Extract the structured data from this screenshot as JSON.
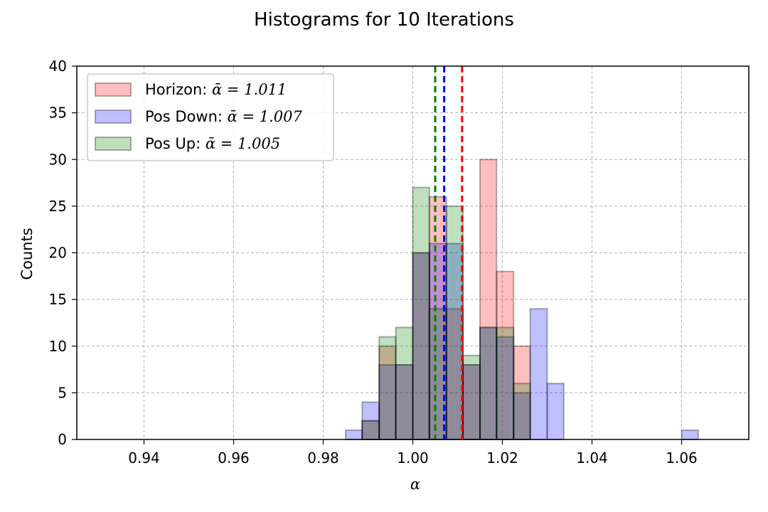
{
  "chart_data": {
    "type": "histogram",
    "title": "Histograms for 10 Iterations",
    "xlabel": "α",
    "ylabel": "Counts",
    "xlim": [
      0.925,
      1.075
    ],
    "ylim": [
      0,
      40
    ],
    "xticks": [
      0.94,
      0.96,
      0.98,
      1.0,
      1.02,
      1.04,
      1.06
    ],
    "xtick_labels": [
      "0.94",
      "0.96",
      "0.98",
      "1.00",
      "1.02",
      "1.04",
      "1.06"
    ],
    "yticks": [
      0,
      5,
      10,
      15,
      20,
      25,
      30,
      35,
      40
    ],
    "ytick_labels": [
      "0",
      "5",
      "10",
      "15",
      "20",
      "25",
      "30",
      "35",
      "40"
    ],
    "grid": true,
    "legend_position": "upper-left",
    "bin_edges": [
      0.985,
      0.9887,
      0.9925,
      0.9962,
      1.0,
      1.0037,
      1.0075,
      1.0112,
      1.015,
      1.0187,
      1.0225,
      1.0262,
      1.03,
      1.0337,
      1.0375,
      1.0412,
      1.045,
      1.0487,
      1.0525,
      1.0562,
      1.06,
      1.0637
    ],
    "series": [
      {
        "name": "Horizon",
        "legend_prefix": "Horizon: ",
        "legend_math": "ᾱ = 1.011",
        "color": "#ff0000",
        "mean": 1.011,
        "counts": [
          0,
          2,
          10,
          8,
          20,
          26,
          14,
          8,
          30,
          18,
          10,
          0,
          0,
          0,
          0,
          0,
          0,
          0,
          0,
          0,
          0
        ]
      },
      {
        "name": "Pos Down",
        "legend_prefix": "Pos Down: ",
        "legend_math": "ᾱ = 1.007",
        "color": "#0000ff",
        "mean": 1.007,
        "counts": [
          1,
          4,
          8,
          8,
          20,
          21,
          21,
          8,
          12,
          11,
          5,
          14,
          6,
          0,
          0,
          0,
          0,
          0,
          0,
          0,
          1
        ]
      },
      {
        "name": "Pos Up",
        "legend_prefix": "Pos Up: ",
        "legend_math": "ᾱ = 1.005",
        "color": "#008000",
        "mean": 1.005,
        "counts": [
          0,
          2,
          11,
          12,
          27,
          14,
          25,
          9,
          12,
          12,
          6,
          0,
          0,
          0,
          0,
          0,
          0,
          0,
          0,
          0,
          0
        ]
      }
    ]
  }
}
